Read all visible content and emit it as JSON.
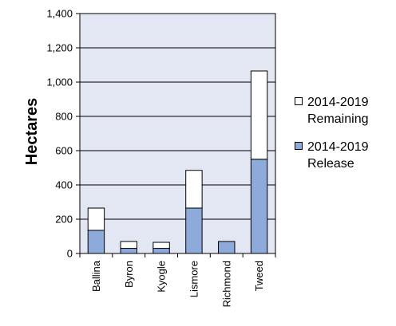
{
  "chart_data": {
    "type": "bar",
    "stacked": true,
    "title": "",
    "xlabel": "",
    "ylabel": "Hectares",
    "ylim": [
      0,
      1400
    ],
    "yticks": [
      0,
      200,
      400,
      600,
      800,
      1000,
      1200,
      1400
    ],
    "ytick_labels": [
      "0",
      "200",
      "400",
      "600",
      "800",
      "1,000",
      "1,200",
      "1,400"
    ],
    "grid": true,
    "legend_position": "right",
    "categories": [
      "Ballina",
      "Byron",
      "Kyogle",
      "Lismore",
      "Richmond",
      "Tweed"
    ],
    "series": [
      {
        "name": "2014-2019 Release",
        "legend_lines": [
          "2014-2019",
          "Release"
        ],
        "color": "#8eaadb",
        "values": [
          135,
          30,
          30,
          265,
          70,
          550
        ]
      },
      {
        "name": "2014-2019 Remaining",
        "legend_lines": [
          "2014-2019",
          "Remaining"
        ],
        "color": "#ffffff",
        "values": [
          130,
          40,
          35,
          220,
          0,
          515
        ]
      }
    ],
    "plot_background": "#e3e6f3"
  }
}
